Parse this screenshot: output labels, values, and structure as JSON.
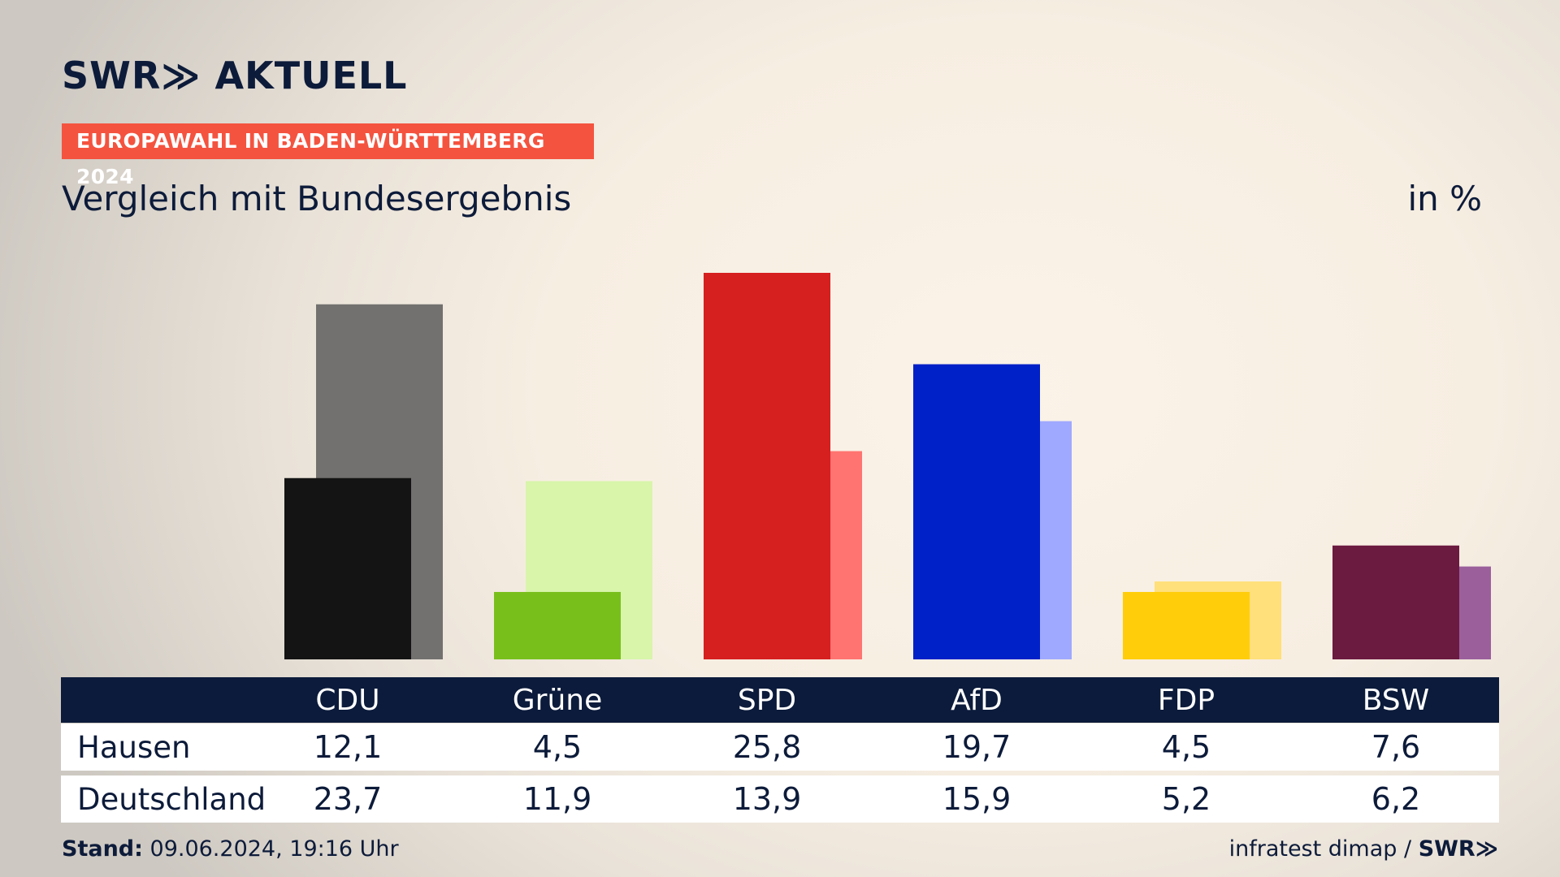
{
  "brand": {
    "logo_text": "SWR≫ AKTUELL",
    "source_logo": "SWR≫"
  },
  "header": {
    "tag": "EUROPAWAHL IN BADEN-WÜRTTEMBERG 2024",
    "title": "Vergleich mit Bundesergebnis",
    "unit": "in %"
  },
  "footer": {
    "stand_label": "Stand:",
    "stand_value": "09.06.2024, 19:16 Uhr",
    "source": "infratest dimap /"
  },
  "chart_data": {
    "type": "bar",
    "categories": [
      "CDU",
      "Grüne",
      "SPD",
      "AfD",
      "FDP",
      "BSW"
    ],
    "series": [
      {
        "name": "Hausen",
        "values": [
          12.1,
          4.5,
          25.8,
          19.7,
          4.5,
          7.6
        ],
        "colors": [
          "#141414",
          "#79bf1c",
          "#d61f1f",
          "#0020c8",
          "#ffcd0a",
          "#6b1a40"
        ]
      },
      {
        "name": "Deutschland",
        "values": [
          23.7,
          11.9,
          13.9,
          15.9,
          5.2,
          6.2
        ],
        "colors": [
          "#72716f",
          "#d8f5aa",
          "#ff7370",
          "#9fa9ff",
          "#ffe07a",
          "#9b5f9c"
        ]
      }
    ],
    "ylim": [
      0,
      25.8
    ],
    "legend": "table-bottom"
  }
}
